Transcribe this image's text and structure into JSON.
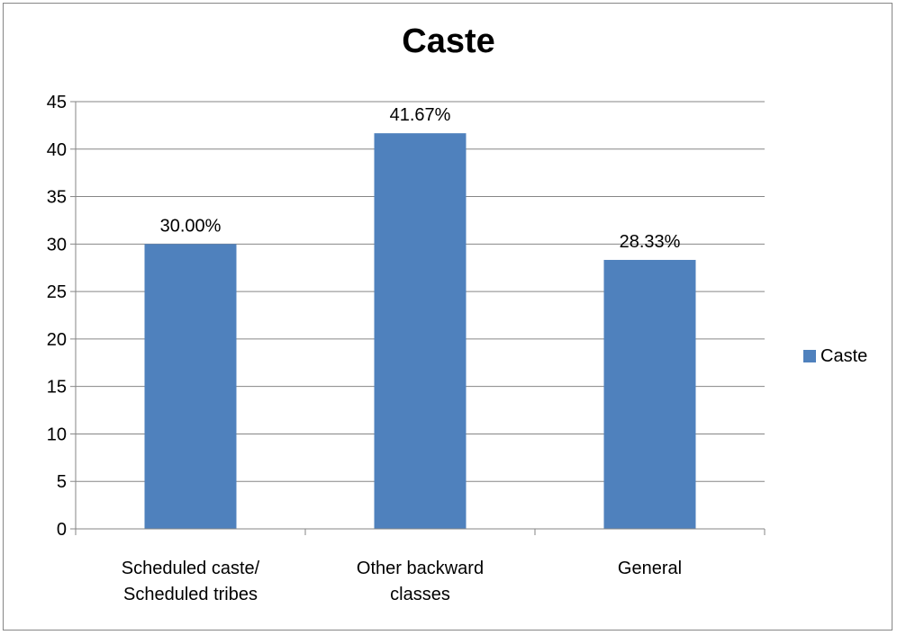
{
  "chart_data": {
    "type": "bar",
    "title": "Caste",
    "xlabel": "",
    "ylabel": "",
    "categories": [
      [
        "Scheduled caste/",
        "Scheduled  tribes"
      ],
      [
        "Other backward",
        "classes"
      ],
      [
        "General"
      ]
    ],
    "series": [
      {
        "name": "Caste",
        "values": [
          30.0,
          41.67,
          28.33
        ],
        "data_labels": [
          "30.00%",
          "41.67%",
          "28.33%"
        ],
        "color": "#4f81bd"
      }
    ],
    "ylim": [
      0,
      45
    ],
    "yticks": [
      0,
      5,
      10,
      15,
      20,
      25,
      30,
      35,
      40,
      45
    ],
    "grid": true,
    "legend_position": "right"
  }
}
